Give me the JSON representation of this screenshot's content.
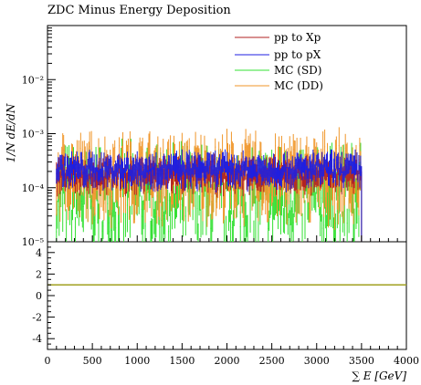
{
  "chart_data": {
    "type": "line",
    "title": "ZDC Minus Energy Deposition",
    "xlabel": "∑ E [GeV]",
    "ylabel": "1/N dE/dN",
    "xlim": [
      0,
      4000
    ],
    "ylim": [
      1e-05,
      0.1
    ],
    "yscale": "log",
    "x_ticks": [
      "0",
      "500",
      "1000",
      "1500",
      "2000",
      "2500",
      "3000",
      "3500",
      "4000"
    ],
    "y_ticks": [
      "10⁻⁵",
      "10⁻⁴",
      "10⁻³",
      "10⁻²"
    ],
    "legend_position": "top-right",
    "series": [
      {
        "name": "pp to Xp",
        "color": "#b22222",
        "level": 0.0002,
        "x_end": 3500
      },
      {
        "name": "pp to pX",
        "color": "#1f1fe0",
        "level": 0.00025,
        "x_end": 3500
      },
      {
        "name": "MC (SD)",
        "color": "#33e033",
        "level": 9e-05,
        "x_end": 3500
      },
      {
        "name": "MC (DD)",
        "color": "#f0962a",
        "level": 0.00018,
        "x_end": 3500
      }
    ],
    "ratio_panel": {
      "ylim": [
        -5,
        5
      ],
      "y_ticks": [
        "4",
        "2",
        "0",
        "-2",
        "-4"
      ],
      "reference_line": 1,
      "line_color": "#a0a020"
    }
  }
}
